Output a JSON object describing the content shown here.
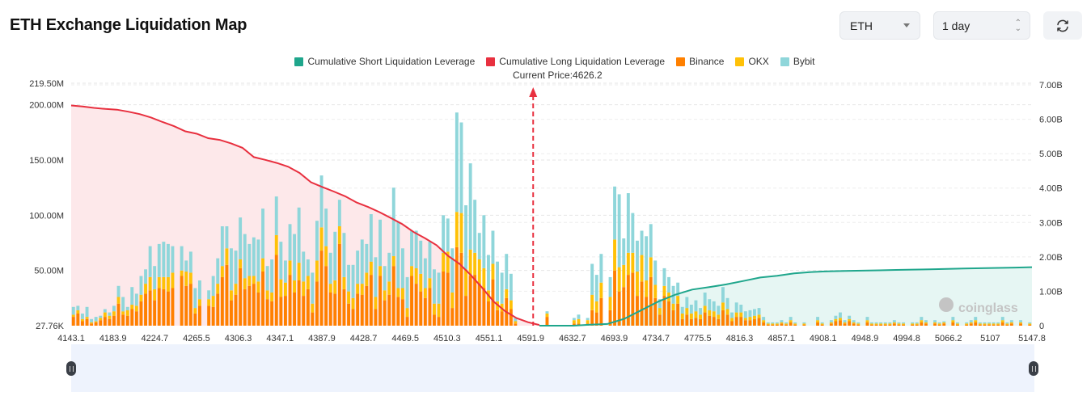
{
  "header": {
    "title": "ETH Exchange Liquidation Map"
  },
  "controls": {
    "coin_select": {
      "value": "ETH",
      "icon": "caret-down-icon"
    },
    "range_select": {
      "value": "1 day",
      "icon": "up-down-arrows-icon"
    },
    "refresh_button": {
      "icon": "refresh-icon"
    }
  },
  "colors": {
    "short_cum": "#1fa68c",
    "long_cum": "#e8303f",
    "binance": "#ff8000",
    "okx": "#ffc107",
    "bybit": "#8fd6da",
    "long_fill": "#fde8ea",
    "short_fill": "#e6f6f3",
    "slider_bg": "#eef3fd"
  },
  "watermark": "coinglass",
  "chart_data": {
    "type": "bar",
    "title": "ETH Exchange Liquidation Map",
    "current_price_label": "Current Price:4626.2",
    "current_price": 4626.2,
    "legend": [
      {
        "name": "Cumulative Short Liquidation Leverage",
        "color": "#1fa68c"
      },
      {
        "name": "Cumulative Long Liquidation Leverage",
        "color": "#e8303f"
      },
      {
        "name": "Binance",
        "color": "#ff8000"
      },
      {
        "name": "OKX",
        "color": "#ffc107"
      },
      {
        "name": "Bybit",
        "color": "#8fd6da"
      }
    ],
    "legend_position": "top-center",
    "x_tick_labels": [
      "4143.1",
      "4183.9",
      "4224.7",
      "4265.5",
      "4306.3",
      "4347.1",
      "4387.9",
      "4428.7",
      "4469.5",
      "4510.3",
      "4551.1",
      "4591.9",
      "4632.7",
      "4693.9",
      "4734.7",
      "4775.5",
      "4816.3",
      "4857.1",
      "4908.1",
      "4948.9",
      "4994.8",
      "5066.2",
      "5107",
      "5147.8"
    ],
    "x_range": [
      4143.1,
      5147.8
    ],
    "left_axis": {
      "ticks": [
        "27.76K",
        "50.00M",
        "100.00M",
        "150.00M",
        "200.00M",
        "219.50M"
      ],
      "tick_values": [
        0.02776,
        50,
        100,
        150,
        200,
        219.5
      ],
      "range": [
        0.02776,
        219.5
      ],
      "unit": "M"
    },
    "right_axis": {
      "ticks": [
        "0",
        "1.00B",
        "2.00B",
        "3.00B",
        "4.00B",
        "5.00B",
        "6.00B",
        "7.00B"
      ],
      "tick_values": [
        0,
        1,
        2,
        3,
        4,
        5,
        6,
        7
      ],
      "range": [
        0,
        7
      ],
      "unit": "B"
    },
    "grid": true,
    "bars_unit": "M",
    "series": [
      {
        "name": "Binance",
        "values": [
          8,
          11,
          4,
          6,
          2,
          3,
          5,
          8,
          6,
          9,
          20,
          10,
          9,
          15,
          13,
          22,
          29,
          32,
          23,
          34,
          33,
          31,
          34,
          0,
          45,
          36,
          38,
          11,
          18,
          0,
          18,
          17,
          29,
          44,
          55,
          23,
          28,
          52,
          33,
          36,
          38,
          30,
          49,
          24,
          22,
          64,
          26,
          27,
          46,
          30,
          41,
          27,
          33,
          12,
          40,
          68,
          54,
          30,
          29,
          74,
          33,
          20,
          15,
          29,
          28,
          36,
          46,
          15,
          45,
          23,
          28,
          54,
          26,
          24,
          8,
          45,
          38,
          31,
          25,
          34,
          10,
          8,
          49,
          48,
          16,
          71,
          66,
          27,
          45,
          46,
          38,
          34,
          22,
          42,
          14,
          13,
          25,
          15,
          2,
          0,
          0,
          0,
          0,
          0,
          0,
          8,
          0,
          0,
          0,
          0,
          0,
          2,
          2,
          0,
          2,
          14,
          12,
          25,
          0,
          14,
          50,
          31,
          35,
          46,
          48,
          27,
          40,
          26,
          44,
          25,
          10,
          27,
          22,
          14,
          20,
          6,
          10,
          6,
          7,
          6,
          12,
          9,
          8,
          6,
          14,
          10,
          4,
          8,
          8,
          5,
          5,
          6,
          7,
          3,
          1,
          1,
          1,
          2,
          1,
          3,
          1,
          0,
          1,
          0,
          0,
          3,
          1,
          0,
          2,
          4,
          5,
          2,
          4,
          2,
          1,
          0,
          3,
          1,
          1,
          1,
          1,
          1,
          2,
          1,
          1,
          0,
          1,
          1,
          3,
          2,
          0,
          2,
          1,
          2,
          0,
          3,
          1,
          0,
          1,
          2,
          3,
          1,
          1,
          1,
          1,
          1,
          3,
          1,
          2,
          0,
          2,
          0,
          1
        ]
      },
      {
        "name": "OKX",
        "values": [
          2,
          3,
          2,
          2,
          1,
          1,
          2,
          4,
          3,
          4,
          6,
          3,
          5,
          4,
          5,
          6,
          9,
          12,
          10,
          10,
          11,
          13,
          14,
          0,
          5,
          13,
          10,
          5,
          6,
          0,
          6,
          10,
          9,
          10,
          15,
          9,
          10,
          8,
          10,
          9,
          7,
          10,
          12,
          8,
          8,
          18,
          16,
          12,
          13,
          11,
          16,
          13,
          12,
          8,
          19,
          21,
          18,
          8,
          12,
          16,
          11,
          11,
          10,
          9,
          10,
          12,
          12,
          11,
          9,
          9,
          12,
          9,
          8,
          10,
          8,
          9,
          14,
          16,
          9,
          9,
          10,
          12,
          17,
          19,
          14,
          32,
          36,
          24,
          24,
          20,
          22,
          18,
          10,
          14,
          8,
          7,
          8,
          8,
          2,
          0,
          0,
          0,
          0,
          0,
          0,
          3,
          0,
          0,
          0,
          0,
          0,
          3,
          4,
          0,
          3,
          14,
          10,
          14,
          0,
          12,
          28,
          22,
          20,
          20,
          18,
          22,
          24,
          15,
          18,
          12,
          6,
          9,
          8,
          6,
          7,
          5,
          6,
          5,
          6,
          4,
          6,
          5,
          5,
          4,
          7,
          5,
          3,
          4,
          4,
          2,
          3,
          3,
          3,
          2,
          1,
          1,
          1,
          1,
          1,
          2,
          1,
          0,
          1,
          0,
          0,
          2,
          1,
          0,
          1,
          2,
          2,
          1,
          2,
          1,
          1,
          0,
          2,
          1,
          1,
          1,
          1,
          1,
          1,
          1,
          1,
          0,
          1,
          1,
          2,
          1,
          0,
          1,
          1,
          1,
          0,
          2,
          1,
          0,
          1,
          1,
          2,
          1,
          1,
          1,
          1,
          1,
          2,
          1,
          1,
          0,
          1,
          0,
          1
        ]
      },
      {
        "name": "Bybit",
        "values": [
          7,
          4,
          5,
          9,
          3,
          4,
          2,
          3,
          3,
          5,
          10,
          13,
          3,
          16,
          11,
          17,
          13,
          28,
          21,
          30,
          32,
          30,
          24,
          0,
          22,
          10,
          19,
          18,
          17,
          0,
          8,
          18,
          23,
          36,
          20,
          38,
          30,
          38,
          40,
          29,
          35,
          38,
          45,
          22,
          30,
          35,
          34,
          20,
          33,
          42,
          50,
          27,
          15,
          28,
          36,
          47,
          34,
          28,
          44,
          24,
          40,
          24,
          30,
          30,
          40,
          26,
          43,
          36,
          42,
          22,
          26,
          62,
          60,
          36,
          28,
          32,
          34,
          30,
          27,
          33,
          31,
          28,
          34,
          30,
          40,
          90,
          82,
          58,
          78,
          48,
          24,
          48,
          32,
          30,
          36,
          28,
          32,
          24,
          3,
          0,
          0,
          0,
          0,
          0,
          0,
          2,
          0,
          0,
          0,
          0,
          0,
          2,
          4,
          0,
          2,
          28,
          24,
          26,
          0,
          18,
          48,
          66,
          24,
          54,
          36,
          28,
          22,
          40,
          30,
          22,
          8,
          16,
          14,
          16,
          12,
          6,
          10,
          8,
          10,
          6,
          12,
          10,
          9,
          8,
          14,
          10,
          5,
          9,
          7,
          6,
          6,
          6,
          6,
          3,
          1,
          1,
          1,
          2,
          1,
          3,
          1,
          0,
          1,
          0,
          0,
          3,
          1,
          0,
          2,
          3,
          5,
          2,
          3,
          2,
          1,
          0,
          3,
          1,
          1,
          1,
          1,
          1,
          2,
          1,
          1,
          0,
          1,
          1,
          3,
          2,
          0,
          2,
          1,
          1,
          0,
          3,
          1,
          0,
          1,
          2,
          3,
          1,
          1,
          1,
          1,
          1,
          3,
          1,
          2,
          0,
          2,
          0,
          1
        ]
      },
      {
        "name": "Cumulative Long Liquidation Leverage",
        "axis": "right",
        "unit": "B",
        "x_start": 4143.1,
        "x_end": 4632.7,
        "values": [
          6.4,
          6.37,
          6.33,
          6.3,
          6.28,
          6.22,
          6.15,
          6.05,
          5.92,
          5.8,
          5.65,
          5.58,
          5.45,
          5.4,
          5.3,
          5.17,
          4.9,
          4.82,
          4.73,
          4.62,
          4.44,
          4.17,
          4.03,
          3.9,
          3.76,
          3.58,
          3.45,
          3.3,
          3.13,
          2.95,
          2.72,
          2.54,
          2.34,
          2.03,
          1.8,
          1.47,
          1.1,
          0.7,
          0.42,
          0.22,
          0.1,
          0.02
        ]
      },
      {
        "name": "Cumulative Short Liquidation Leverage",
        "axis": "right",
        "unit": "B",
        "x_start": 4632.7,
        "x_end": 5147.8,
        "values": [
          0.0,
          0.0,
          0.0,
          0.03,
          0.05,
          0.2,
          0.45,
          0.7,
          0.9,
          1.05,
          1.12,
          1.2,
          1.3,
          1.4,
          1.45,
          1.52,
          1.56,
          1.58,
          1.59,
          1.6,
          1.61,
          1.62,
          1.63,
          1.64,
          1.65,
          1.66,
          1.67,
          1.68,
          1.69,
          1.7
        ]
      }
    ]
  },
  "slider": {
    "left_handle": "left-range-handle",
    "right_handle": "right-range-handle"
  }
}
